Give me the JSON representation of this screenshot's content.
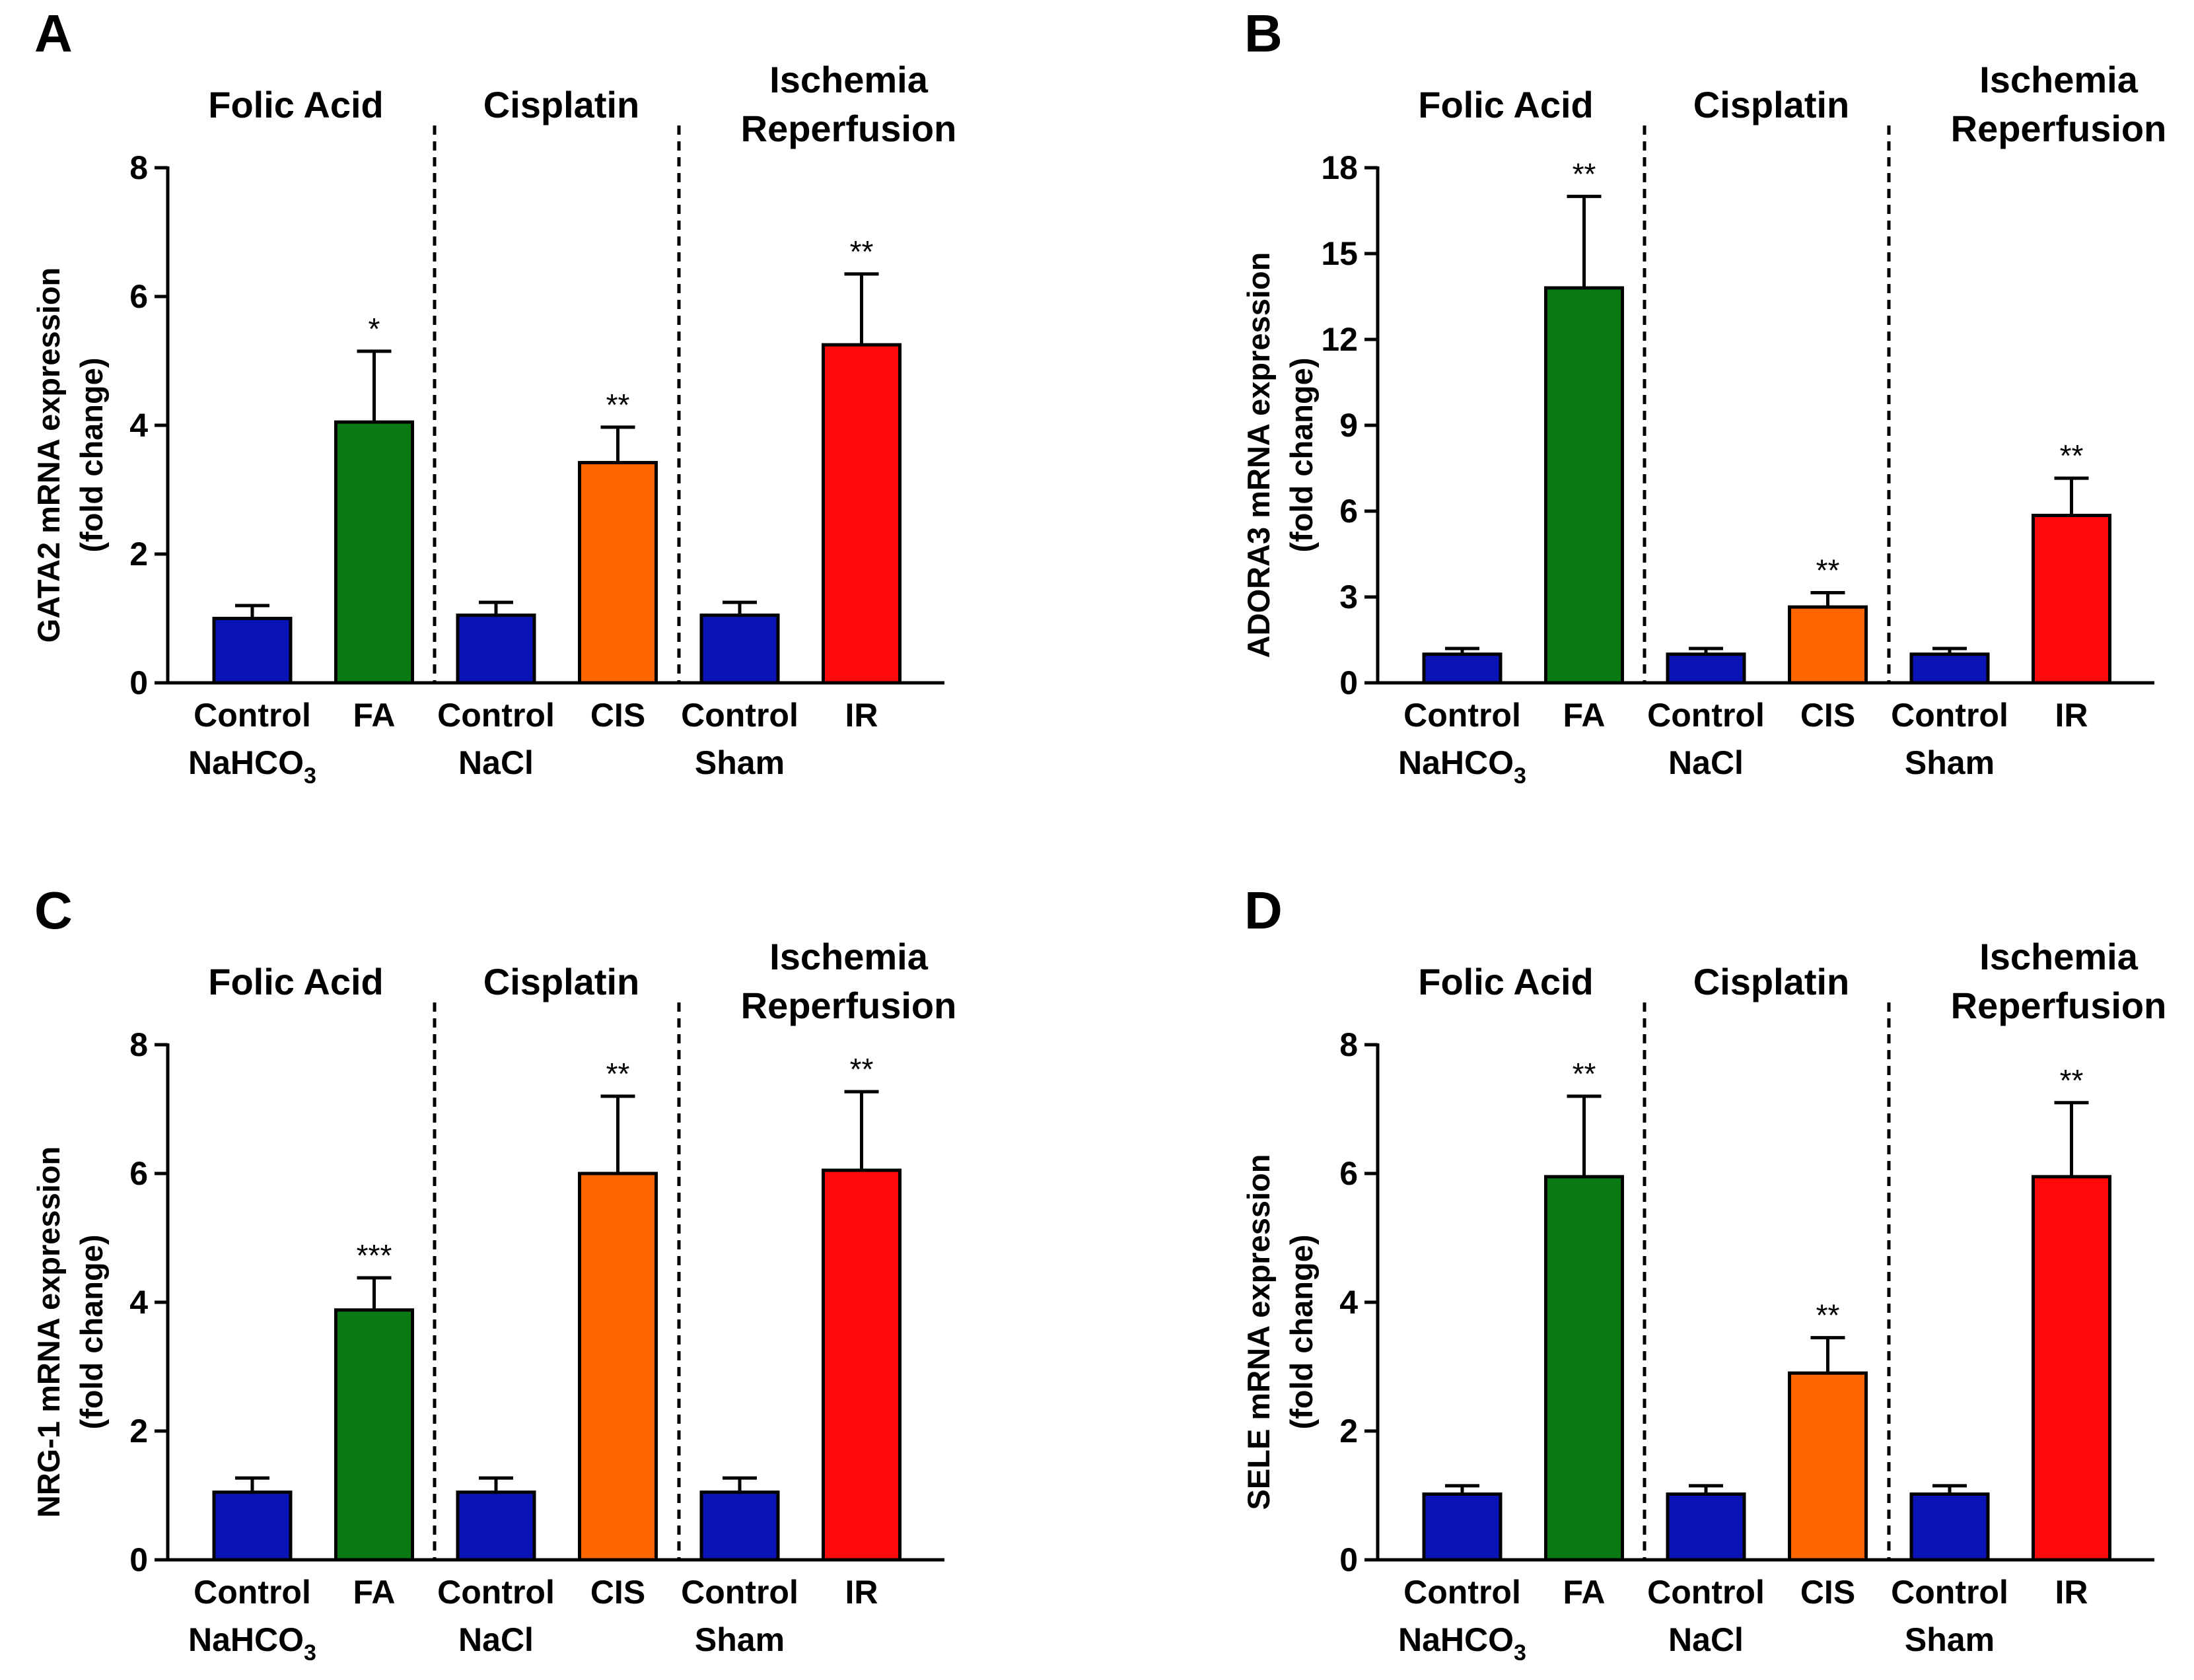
{
  "chart_data": [
    {
      "panel": "A",
      "type": "bar",
      "ylabel_line1": "GATA2 mRNA expression",
      "ylabel_line2": "(fold change)",
      "ylim": [
        0,
        8
      ],
      "yticks": [
        0,
        2,
        4,
        6,
        8
      ],
      "groups": [
        {
          "lines": [
            "Folic Acid"
          ]
        },
        {
          "lines": [
            "Cisplatin"
          ]
        },
        {
          "lines": [
            "Ischemia",
            "Reperfusion"
          ]
        }
      ],
      "bars": [
        {
          "label": "Control",
          "sublabel": "NaHCO",
          "subscript": "3",
          "value": 1.0,
          "error": 0.2,
          "sig": "",
          "color": "#0a14b4"
        },
        {
          "label": "FA",
          "value": 4.05,
          "error": 1.1,
          "sig": "*",
          "color": "#0a7a14"
        },
        {
          "label": "Control",
          "sublabel": "NaCl",
          "value": 1.05,
          "error": 0.2,
          "sig": "",
          "color": "#0a14b4"
        },
        {
          "label": "CIS",
          "value": 3.42,
          "error": 0.55,
          "sig": "**",
          "color": "#ff6600"
        },
        {
          "label": "Control",
          "sublabel": "Sham",
          "value": 1.05,
          "error": 0.2,
          "sig": "",
          "color": "#0a14b4"
        },
        {
          "label": "IR",
          "value": 5.25,
          "error": 1.1,
          "sig": "**",
          "color": "#ff0a0a"
        }
      ]
    },
    {
      "panel": "B",
      "type": "bar",
      "ylabel_line1": "ADORA3 mRNA expression",
      "ylabel_line2": "(fold change)",
      "ylim": [
        0,
        18
      ],
      "yticks": [
        0,
        3,
        6,
        9,
        12,
        15,
        18
      ],
      "groups": [
        {
          "lines": [
            "Folic Acid"
          ]
        },
        {
          "lines": [
            "Cisplatin"
          ]
        },
        {
          "lines": [
            "Ischemia",
            "Reperfusion"
          ]
        }
      ],
      "bars": [
        {
          "label": "Control",
          "sublabel": "NaHCO",
          "subscript": "3",
          "value": 1.0,
          "error": 0.2,
          "sig": "",
          "color": "#0a14b4"
        },
        {
          "label": "FA",
          "value": 13.8,
          "error": 3.2,
          "sig": "**",
          "color": "#0a7a14"
        },
        {
          "label": "Control",
          "sublabel": "NaCl",
          "value": 1.0,
          "error": 0.2,
          "sig": "",
          "color": "#0a14b4"
        },
        {
          "label": "CIS",
          "value": 2.65,
          "error": 0.5,
          "sig": "**",
          "color": "#ff6600"
        },
        {
          "label": "Control",
          "sublabel": "Sham",
          "value": 1.0,
          "error": 0.2,
          "sig": "",
          "color": "#0a14b4"
        },
        {
          "label": "IR",
          "value": 5.85,
          "error": 1.3,
          "sig": "**",
          "color": "#ff0a0a"
        }
      ]
    },
    {
      "panel": "C",
      "type": "bar",
      "ylabel_line1": "NRG-1 mRNA expression",
      "ylabel_line2": "(fold change)",
      "ylim": [
        0,
        8
      ],
      "yticks": [
        0,
        2,
        4,
        6,
        8
      ],
      "groups": [
        {
          "lines": [
            "Folic Acid"
          ]
        },
        {
          "lines": [
            "Cisplatin"
          ]
        },
        {
          "lines": [
            "Ischemia",
            "Reperfusion"
          ]
        }
      ],
      "bars": [
        {
          "label": "Control",
          "sublabel": "NaHCO",
          "subscript": "3",
          "value": 1.05,
          "error": 0.22,
          "sig": "",
          "color": "#0a14b4"
        },
        {
          "label": "FA",
          "value": 3.88,
          "error": 0.5,
          "sig": "***",
          "color": "#0a7a14"
        },
        {
          "label": "Control",
          "sublabel": "NaCl",
          "value": 1.05,
          "error": 0.22,
          "sig": "",
          "color": "#0a14b4"
        },
        {
          "label": "CIS",
          "value": 6.0,
          "error": 1.2,
          "sig": "**",
          "color": "#ff6600"
        },
        {
          "label": "Control",
          "sublabel": "Sham",
          "value": 1.05,
          "error": 0.22,
          "sig": "",
          "color": "#0a14b4"
        },
        {
          "label": "IR",
          "value": 6.05,
          "error": 1.22,
          "sig": "**",
          "color": "#ff0a0a"
        }
      ]
    },
    {
      "panel": "D",
      "type": "bar",
      "ylabel_line1": "SELE mRNA expression",
      "ylabel_line2": "(fold change)",
      "ylim": [
        0,
        8
      ],
      "yticks": [
        0,
        2,
        4,
        6,
        8
      ],
      "groups": [
        {
          "lines": [
            "Folic Acid"
          ]
        },
        {
          "lines": [
            "Cisplatin"
          ]
        },
        {
          "lines": [
            "Ischemia",
            "Reperfusion"
          ]
        }
      ],
      "bars": [
        {
          "label": "Control",
          "sublabel": "NaHCO",
          "subscript": "3",
          "value": 1.02,
          "error": 0.13,
          "sig": "",
          "color": "#0a14b4"
        },
        {
          "label": "FA",
          "value": 5.95,
          "error": 1.25,
          "sig": "**",
          "color": "#0a7a14"
        },
        {
          "label": "Control",
          "sublabel": "NaCl",
          "value": 1.02,
          "error": 0.13,
          "sig": "",
          "color": "#0a14b4"
        },
        {
          "label": "CIS",
          "value": 2.9,
          "error": 0.55,
          "sig": "**",
          "color": "#ff6600"
        },
        {
          "label": "Control",
          "sublabel": "Sham",
          "value": 1.02,
          "error": 0.13,
          "sig": "",
          "color": "#0a14b4"
        },
        {
          "label": "IR",
          "value": 5.95,
          "error": 1.15,
          "sig": "**",
          "color": "#ff0a0a"
        }
      ]
    }
  ]
}
